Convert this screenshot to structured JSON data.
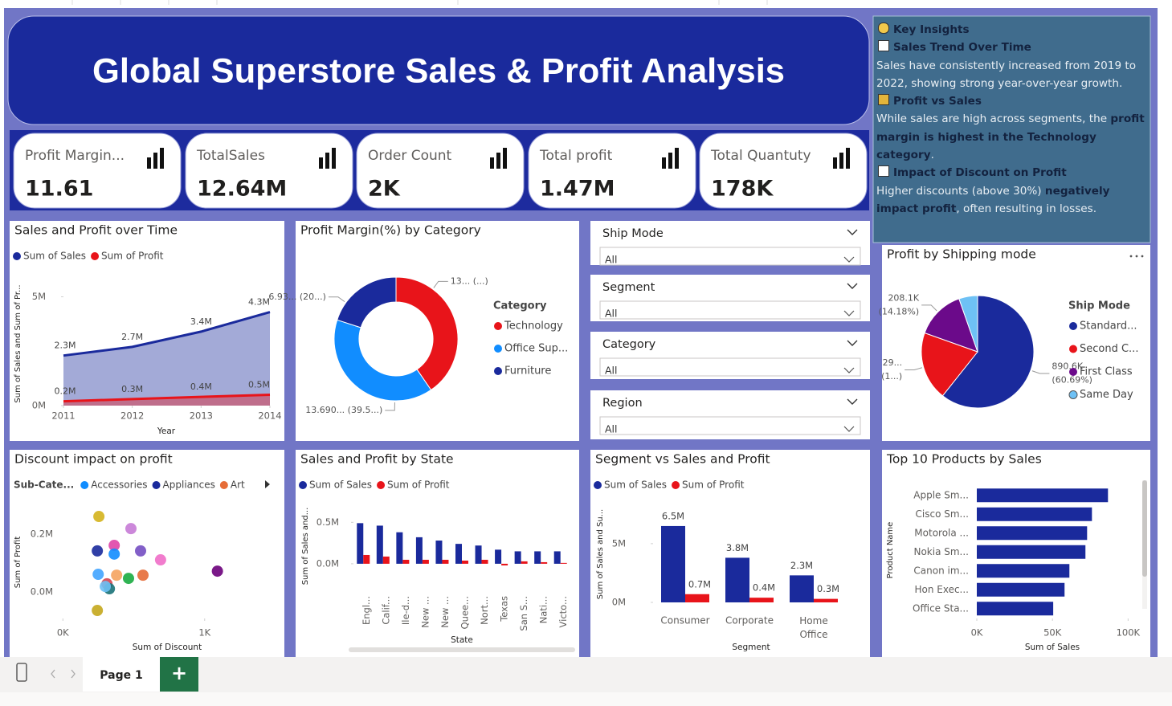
{
  "header": {
    "title": "Global Superstore Sales & Profit Analysis"
  },
  "kpis": [
    {
      "label": "Profit Margin...",
      "value": "11.61"
    },
    {
      "label": "TotalSales",
      "value": "12.64M"
    },
    {
      "label": "Order Count",
      "value": "2K"
    },
    {
      "label": "Total profit",
      "value": "1.47M"
    },
    {
      "label": "Total Quantuty",
      "value": "178K"
    }
  ],
  "insights": {
    "title": "Key Insights",
    "sections": [
      {
        "heading": "Sales Trend Over Time",
        "parts": [
          {
            "text": "Sales have consistently increased from 2019 to 2022, showing strong year-over-year growth.",
            "bold": false
          }
        ]
      },
      {
        "heading": "Profit vs Sales",
        "parts": [
          {
            "text": "While sales are high across segments, the ",
            "bold": false
          },
          {
            "text": "profit margin is highest in the Technology category",
            "bold": true
          },
          {
            "text": ".",
            "bold": false
          }
        ]
      },
      {
        "heading": "Impact of Discount on Profit",
        "parts": [
          {
            "text": "Higher discounts (above 30%) ",
            "bold": false
          },
          {
            "text": "negatively impact profit",
            "bold": true
          },
          {
            "text": ", often resulting in losses.",
            "bold": false
          }
        ]
      }
    ]
  },
  "slicers": [
    {
      "title": "Ship Mode",
      "value": "All"
    },
    {
      "title": "Segment",
      "value": "All"
    },
    {
      "title": "Category",
      "value": "All"
    },
    {
      "title": "Region",
      "value": "All"
    }
  ],
  "footer": {
    "page_tab": "Page 1",
    "add_tab": "+"
  },
  "chart_data": [
    {
      "type": "area",
      "title": "Sales and Profit over Time",
      "x": [
        2011,
        2012,
        2013,
        2014
      ],
      "xlim": [
        2011,
        2014
      ],
      "xticks": [
        2011,
        2012,
        2013,
        2014
      ],
      "ylim": [
        0,
        5500000
      ],
      "yticks": [
        {
          "value": 0,
          "label": "0M"
        },
        {
          "value": 5000000,
          "label": "5M"
        }
      ],
      "x_label": "Year",
      "y_label": "Sum of Sales and Sum of Pr...",
      "series": [
        {
          "name": "Sum of Sales",
          "color": "#1a2a9c",
          "values": [
            2300000,
            2700000,
            3400000,
            4300000
          ],
          "value_labels": [
            "2.3M",
            "2.7M",
            "3.4M",
            "4.3M"
          ]
        },
        {
          "name": "Sum of Profit",
          "color": "#e8141a",
          "values": [
            200000,
            300000,
            400000,
            500000
          ],
          "value_labels": [
            "0.2M",
            "0.3M",
            "0.4M",
            "0.5M"
          ]
        }
      ]
    },
    {
      "type": "donut",
      "title": "Profit Margin(%) by Category",
      "legend_title": "Category",
      "categories": [
        "Technology",
        "Office Sup...",
        "Furniture"
      ],
      "colors": [
        "#e8141a",
        "#118dff",
        "#1a2a9c"
      ],
      "values": [
        13.99,
        13.69,
        6.93
      ],
      "value_labels": [
        "13... (...)",
        "13.690... (39.5...)",
        "6.93... (20...)"
      ]
    },
    {
      "type": "pie",
      "title": "Profit by Shipping mode",
      "legend_title": "Ship Mode",
      "categories": [
        "Standard...",
        "Second C...",
        "First Class",
        "Same Day"
      ],
      "colors": [
        "#1a2a9c",
        "#e8141a",
        "#6b0a8a",
        "#6ec1f5"
      ],
      "values": [
        890.6,
        290.0,
        208.1,
        78.8
      ],
      "value_labels": [
        [
          "890.6K",
          "(60.69%)"
        ],
        [
          "29...",
          "(1...)"
        ],
        [
          "208.1K",
          "(14.18%)"
        ],
        null
      ]
    },
    {
      "type": "scatter",
      "title": "Discount impact on profit",
      "legend_title": "Sub-Cate...",
      "legend": [
        {
          "name": "Accessories",
          "color": "#118dff"
        },
        {
          "name": "Appliances",
          "color": "#1a2a9c"
        },
        {
          "name": "Art",
          "color": "#e66c37"
        }
      ],
      "x": [
        254,
        480,
        362,
        243,
        362,
        548,
        689,
        1090,
        249,
        379,
        463,
        565,
        311,
        328,
        299,
        243
      ],
      "values": [
        261000,
        219000,
        161000,
        142000,
        131000,
        142000,
        111000,
        72000,
        61000,
        58000,
        47000,
        58000,
        28000,
        11000,
        19000,
        -64000
      ],
      "colors": [
        "#d4b21c",
        "#c77bd6",
        "#e044a7",
        "#1a2a9c",
        "#118dff",
        "#744ec2",
        "#f06ec8",
        "#6b007b",
        "#41a4ff",
        "#f5a35f",
        "#1aab40",
        "#e66c37",
        "#d64550",
        "#197278",
        "#6ec1f5",
        "#c4a71c"
      ],
      "xlim": [
        -200,
        1500
      ],
      "xticks": [
        {
          "value": 0,
          "label": "0K"
        },
        {
          "value": 1000,
          "label": "1K"
        }
      ],
      "ylim": [
        -100000,
        300000
      ],
      "yticks": [
        {
          "value": 0,
          "label": "0.0M"
        },
        {
          "value": 200000,
          "label": "0.2M"
        }
      ],
      "x_label": "Sum of Discount",
      "y_label": "Sum of Profit"
    },
    {
      "type": "bar",
      "title": "Sales and Profit by State",
      "categories": [
        "Engl...",
        "Calif...",
        "Ile-d...",
        "New ...",
        "New ...",
        "Quee...",
        "Nort...",
        "Texas",
        "San S...",
        "Nati...",
        "Victo..."
      ],
      "ylim": [
        -30000,
        600000
      ],
      "yticks": [
        {
          "value": 0,
          "label": "0.0M"
        },
        {
          "value": 500000,
          "label": "0.5M"
        }
      ],
      "x_label": "State",
      "y_label": "Sum of Sales and...",
      "series": [
        {
          "name": "Sum of Sales",
          "color": "#1a2a9c",
          "values": [
            490000,
            460000,
            380000,
            320000,
            280000,
            240000,
            220000,
            170000,
            150000,
            150000,
            150000
          ]
        },
        {
          "name": "Sum of Profit",
          "color": "#e8141a",
          "values": [
            106000,
            87000,
            48000,
            48000,
            48000,
            38000,
            48000,
            -20000,
            29000,
            19000,
            10000
          ]
        }
      ]
    },
    {
      "type": "bar",
      "title": "Segment vs Sales and Profit",
      "categories": [
        "Consumer",
        "Corporate",
        "Home Office"
      ],
      "ylim": [
        0,
        8000000
      ],
      "yticks": [
        {
          "value": 0,
          "label": "0M"
        },
        {
          "value": 5000000,
          "label": "5M"
        }
      ],
      "x_label": "Segment",
      "y_label": "Sum of Sales and Su...",
      "series": [
        {
          "name": "Sum of Sales",
          "color": "#1a2a9c",
          "values": [
            6500000,
            3800000,
            2300000
          ],
          "value_labels": [
            "6.5M",
            "3.8M",
            "2.3M"
          ]
        },
        {
          "name": "Sum of Profit",
          "color": "#e8141a",
          "values": [
            700000,
            400000,
            300000
          ],
          "value_labels": [
            "0.7M",
            "0.4M",
            "0.3M"
          ]
        }
      ]
    },
    {
      "type": "hbar",
      "title": "Top 10 Products by Sales",
      "categories": [
        "Apple Sm...",
        "Cisco Sm...",
        "Motorola ...",
        "Nokia Sm...",
        "Canon im...",
        "Hon Exec...",
        "Office Sta..."
      ],
      "values": [
        86700,
        76100,
        72900,
        71800,
        61200,
        58000,
        50500
      ],
      "color": "#1a2a9c",
      "xlim": [
        0,
        103000
      ],
      "xticks": [
        {
          "value": 0,
          "label": "0K"
        },
        {
          "value": 50000,
          "label": "50K"
        },
        {
          "value": 100000,
          "label": "100K"
        }
      ],
      "x_label": "Sum of Sales",
      "y_label": "Product Name"
    }
  ]
}
